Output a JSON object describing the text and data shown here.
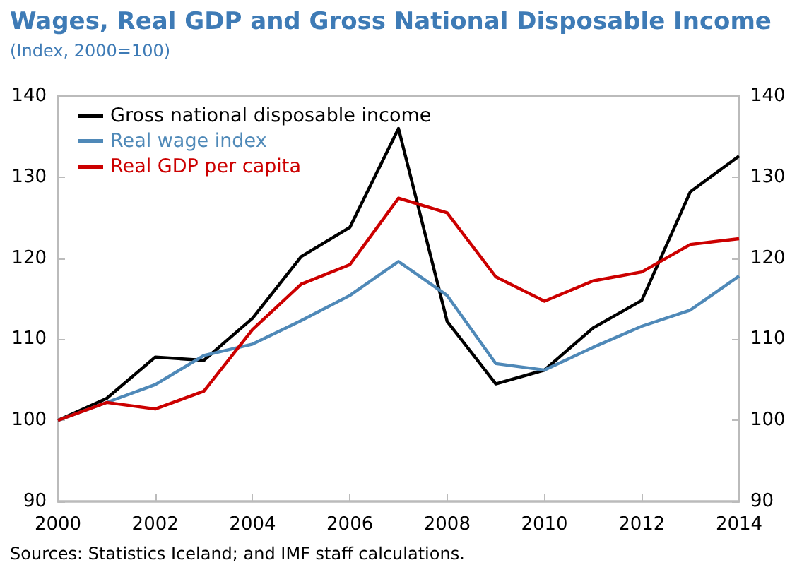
{
  "chart_data": {
    "type": "line",
    "title": "Wages, Real GDP and Gross National Disposable Income",
    "subtitle": "(Index, 2000=100)",
    "x": [
      2000,
      2001,
      2002,
      2003,
      2004,
      2005,
      2006,
      2007,
      2008,
      2009,
      2010,
      2011,
      2012,
      2013,
      2014
    ],
    "series": [
      {
        "name": "Gross national disposable income",
        "color": "#000000",
        "values": [
          100,
          102.7,
          107.8,
          107.4,
          112.6,
          120.2,
          123.8,
          136,
          112.2,
          104.5,
          106.2,
          111.4,
          114.8,
          128.2,
          132.6
        ]
      },
      {
        "name": "Real wage index",
        "color": "#4f89b8",
        "values": [
          100,
          102.2,
          104.4,
          108,
          109.4,
          112.3,
          115.4,
          119.6,
          115.4,
          107,
          106.2,
          109,
          111.6,
          113.6,
          117.8
        ]
      },
      {
        "name": "Real GDP per capita",
        "color": "#cc0000",
        "values": [
          100,
          102.2,
          101.4,
          103.6,
          111.2,
          116.8,
          119.2,
          127.4,
          125.6,
          117.7,
          114.7,
          117.2,
          118.3,
          121.7,
          122.4
        ]
      }
    ],
    "xlim": [
      2000,
      2014
    ],
    "xticks": [
      2000,
      2002,
      2004,
      2006,
      2008,
      2010,
      2012,
      2014
    ],
    "ylim": [
      90,
      140
    ],
    "yticks": [
      90,
      100,
      110,
      120,
      130,
      140
    ],
    "y2lim": [
      90,
      140
    ],
    "y2ticks": [
      90,
      100,
      110,
      120,
      130,
      140
    ],
    "annotations": [
      "Sources: Statistics Iceland; and IMF staff calculations."
    ],
    "grid": false,
    "legend": "top left",
    "marker": "none",
    "line_style": "solid"
  }
}
